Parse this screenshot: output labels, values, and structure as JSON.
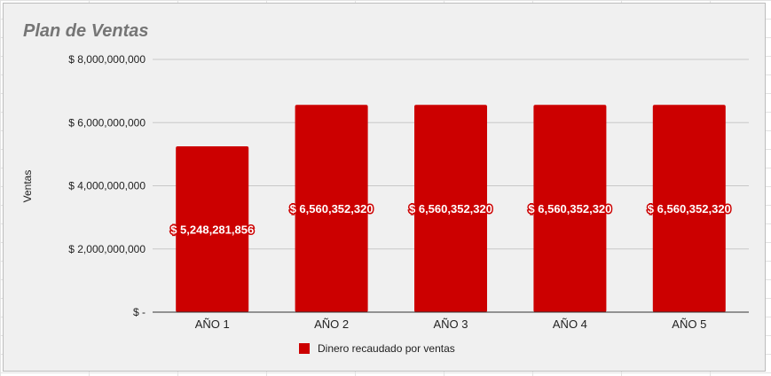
{
  "chart_data": {
    "type": "bar",
    "title": "Plan de Ventas",
    "xlabel": "",
    "ylabel": "Ventas",
    "categories": [
      "AÑO 1",
      "AÑO 2",
      "AÑO 3",
      "AÑO 4",
      "AÑO 5"
    ],
    "series": [
      {
        "name": "Dinero recaudado por ventas",
        "color": "#cc0000",
        "values": [
          5248281856,
          6560352320,
          6560352320,
          6560352320,
          6560352320
        ],
        "data_labels": [
          "$ 5,248,281,856",
          "$ 6,560,352,320",
          "$ 6,560,352,320",
          "$ 6,560,352,320",
          "$ 6,560,352,320"
        ]
      }
    ],
    "ylim": [
      0,
      8000000000
    ],
    "yticks": [
      0,
      2000000000,
      4000000000,
      6000000000,
      8000000000
    ],
    "ytick_labels": [
      "$ -",
      "$ 2,000,000,000",
      "$ 4,000,000,000",
      "$ 6,000,000,000",
      "$ 8,000,000,000"
    ],
    "grid": true,
    "legend_position": "bottom"
  }
}
